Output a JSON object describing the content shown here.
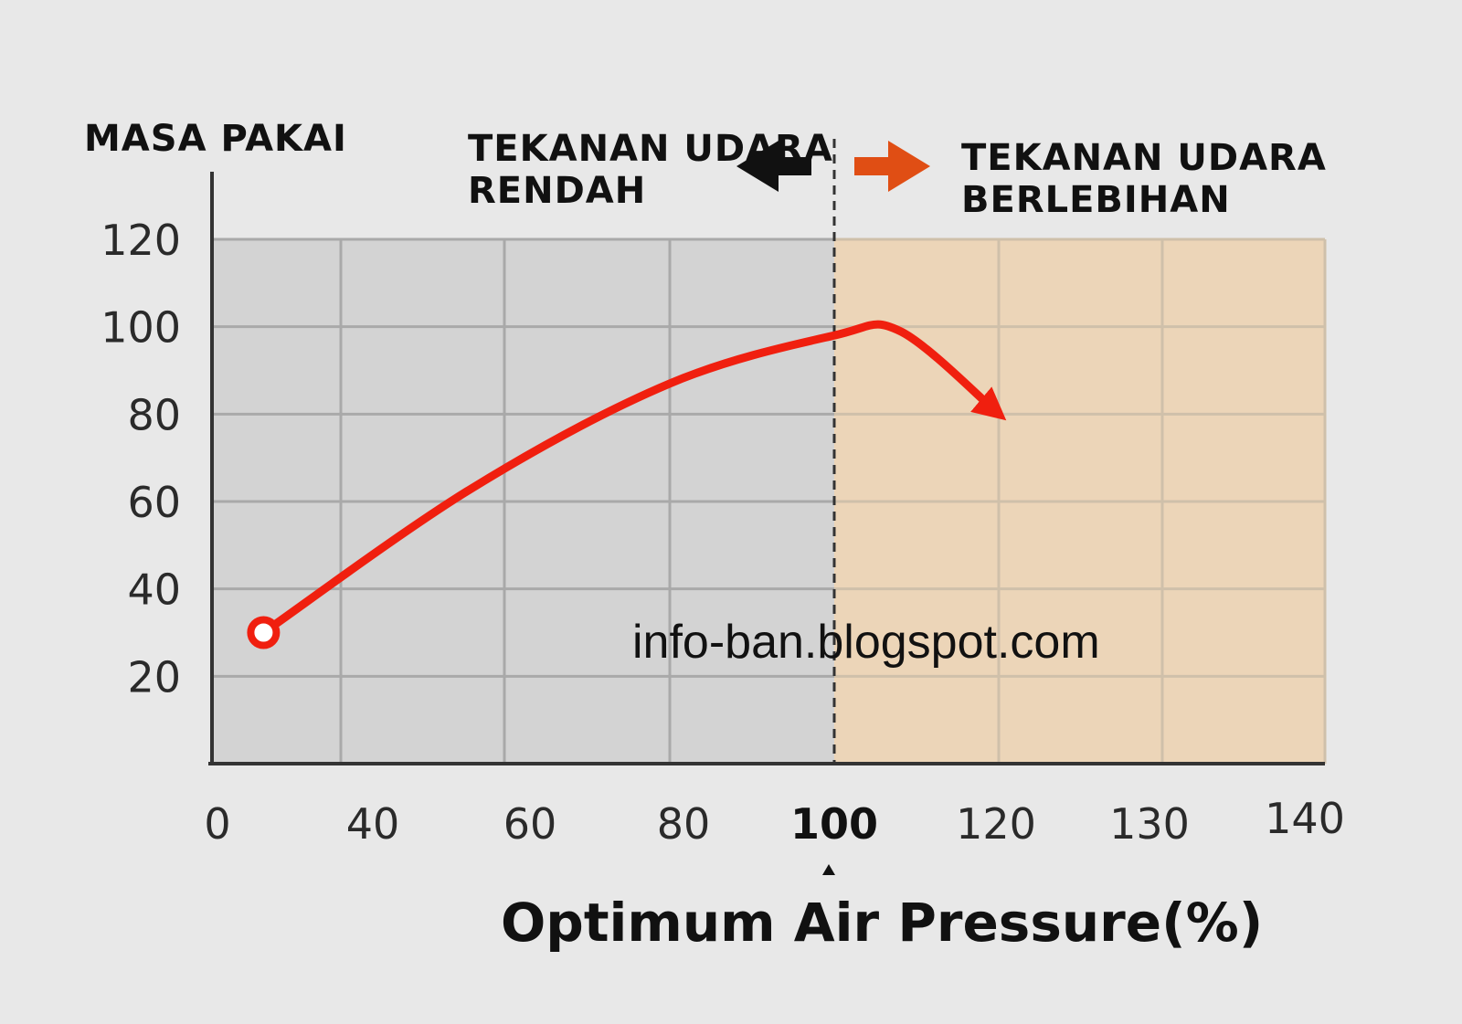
{
  "chart_data": {
    "type": "line",
    "ylabel": "MASA PAKAI",
    "xlabel": "Optimum Air Pressure(%)",
    "x_tick_labels": [
      "0",
      "40",
      "60",
      "80",
      "100",
      "120",
      "130",
      "140"
    ],
    "y_ticks": [
      20,
      40,
      60,
      80,
      100,
      120
    ],
    "ylim": [
      0,
      120
    ],
    "optimum_marker": "100",
    "regions": [
      {
        "label_line1": "TEKANAN UDARA",
        "label_line2": "RENDAH",
        "color": "#d3d3d3",
        "arrow_color": "#111111",
        "direction": "left"
      },
      {
        "label_line1": "TEKANAN UDARA",
        "label_line2": "BERLEBIHAN",
        "color": "#ecd5b8",
        "arrow_color": "#e04e14",
        "direction": "right"
      }
    ],
    "series": [
      {
        "color": "#f01f0f",
        "points": [
          {
            "x_index": 0.4,
            "y": 30
          },
          {
            "x_index": 1.8,
            "y": 63
          },
          {
            "x_index": 3.0,
            "y": 87
          },
          {
            "x_index": 4.0,
            "y": 98
          },
          {
            "x_index": 4.4,
            "y": 99
          },
          {
            "x_index": 5.0,
            "y": 80
          }
        ]
      }
    ],
    "grid": true,
    "watermark": "info-ban.blogspot.com"
  }
}
